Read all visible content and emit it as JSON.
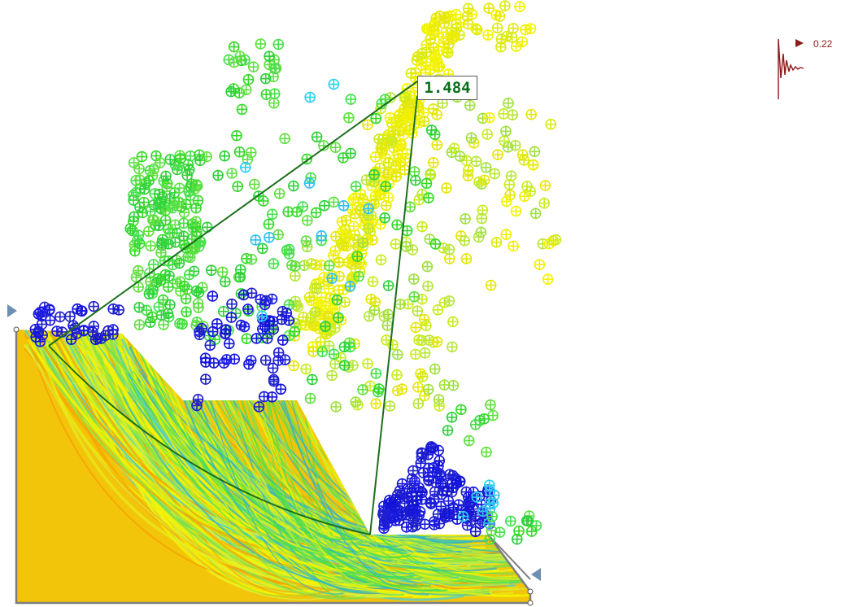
{
  "critical_surface": {
    "factor_of_safety": "1.484"
  },
  "seismic": {
    "coefficient": "0.22"
  },
  "colors": {
    "soil": "#f2c40a",
    "soil_band": "#f6a300",
    "slip_yellow": "#f4f400",
    "slip_green": "#46e04a",
    "critical_line": "#1c6f1c",
    "boundary": "#7d7d7d",
    "grid_blue": "#1414d8",
    "grid_cyan": "#2ad2f0",
    "grid_green": "#36d92a",
    "grid_yellow": "#e6e60a",
    "seismic_marker": "#8b1a1a",
    "water_marker": "#6d8fb2"
  }
}
